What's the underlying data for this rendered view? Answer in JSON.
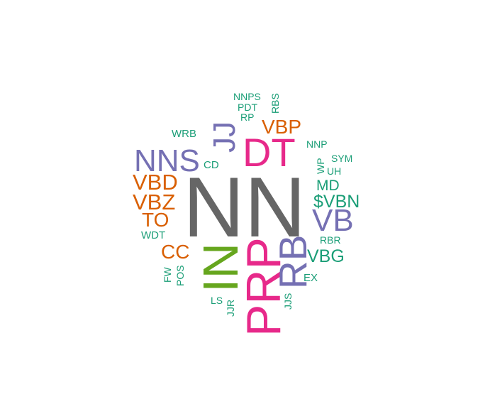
{
  "words": {
    "nn": "NN",
    "in": "IN",
    "prp": "PRP",
    "dt": "DT",
    "rb": "RB",
    "nns": "NNS",
    "jj": "JJ",
    "vb": "VB",
    "vbd": "VBD",
    "vbz": "VBZ",
    "to": "TO",
    "cc": "CC",
    "vbp": "VBP",
    "vbg": "VBG",
    "vbn": "$VBN",
    "md": "MD",
    "nnps": "NNPS",
    "pdt": "PDT",
    "rp": "RP",
    "rbs": "RBS",
    "wrb": "WRB",
    "cd": "CD",
    "nnp": "NNP",
    "wp": "WP",
    "sym": "SYM",
    "uh": "UH",
    "wdt": "WDT",
    "rbr": "RBR",
    "fw": "FW",
    "pos": "POS",
    "ex": "EX",
    "ls": "LS",
    "jjr": "JJR",
    "jjs": "JJS"
  },
  "colors": {
    "green": "#1b9e77",
    "orange": "#d95f02",
    "purple": "#7570b3",
    "pink": "#e7298a",
    "lime": "#66a61e",
    "gray": "#666666"
  }
}
